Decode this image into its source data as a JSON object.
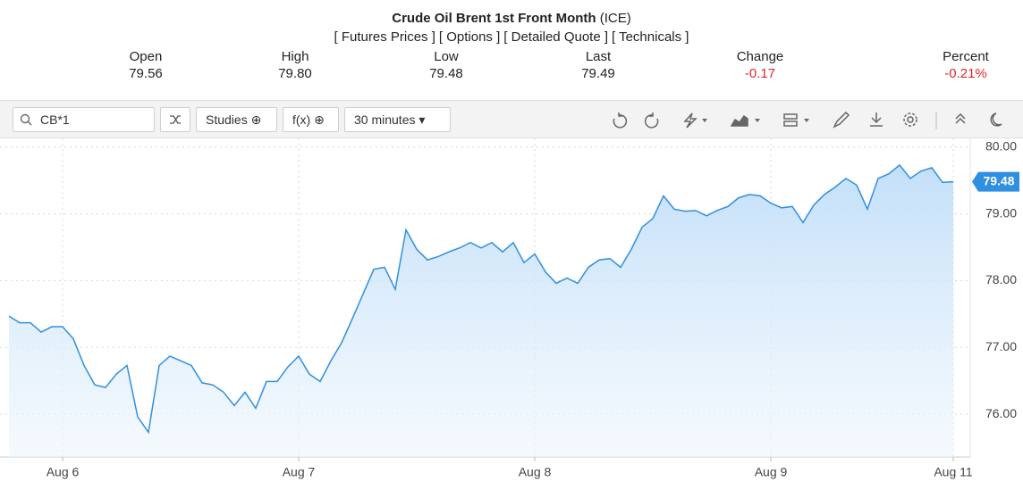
{
  "header": {
    "title": "Crude Oil Brent 1st Front Month",
    "exchange": "(ICE)",
    "links": [
      "[ Futures Prices ]",
      "[ Options ]",
      "[ Detailed Quote ]",
      "[ Technicals ]"
    ],
    "stats": [
      {
        "label": "Open",
        "value": "79.56"
      },
      {
        "label": "High",
        "value": "79.80"
      },
      {
        "label": "Low",
        "value": "79.48"
      },
      {
        "label": "Last",
        "value": "79.49"
      },
      {
        "label": "Change",
        "value": "-0.17"
      },
      {
        "label": "Percent",
        "value": "-0.21%"
      }
    ]
  },
  "toolbar": {
    "symbol": "CB*1",
    "studies": "Studies",
    "fx": "f(x)",
    "interval": "30 minutes"
  },
  "chart_data": {
    "type": "line",
    "categories": [
      null,
      null,
      null,
      null,
      null,
      "Aug 6",
      null,
      null,
      null,
      null,
      null,
      null,
      null,
      null,
      null,
      null,
      null,
      null,
      null,
      null,
      null,
      null,
      null,
      null,
      null,
      null,
      null,
      "Aug 7",
      null,
      null,
      null,
      null,
      null,
      null,
      null,
      null,
      null,
      null,
      null,
      null,
      null,
      null,
      null,
      null,
      null,
      null,
      null,
      null,
      null,
      "Aug 8",
      null,
      null,
      null,
      null,
      null,
      null,
      null,
      null,
      null,
      null,
      null,
      null,
      null,
      null,
      null,
      null,
      null,
      null,
      null,
      null,
      null,
      "Aug 9",
      null,
      null,
      null,
      null,
      null,
      null,
      null,
      null,
      null,
      null,
      null,
      null,
      null,
      null,
      null,
      null,
      "Aug 11"
    ],
    "series": [
      {
        "name": "CB*1",
        "color": "#2f8fe0",
        "values": [
          77.47,
          77.37,
          77.37,
          77.23,
          77.31,
          77.31,
          77.13,
          76.73,
          76.44,
          76.4,
          76.6,
          76.73,
          75.96,
          75.73,
          76.73,
          76.87,
          76.8,
          76.73,
          76.47,
          76.44,
          76.33,
          76.13,
          76.33,
          76.09,
          76.49,
          76.49,
          76.71,
          76.87,
          76.6,
          76.49,
          76.8,
          77.07,
          77.43,
          77.8,
          78.17,
          78.2,
          77.87,
          78.76,
          78.47,
          78.31,
          78.36,
          78.43,
          78.49,
          78.57,
          78.49,
          78.57,
          78.43,
          78.57,
          78.27,
          78.4,
          78.13,
          77.96,
          78.04,
          77.96,
          78.2,
          78.31,
          78.33,
          78.2,
          78.47,
          78.8,
          78.93,
          79.27,
          79.07,
          79.04,
          79.05,
          78.97,
          79.05,
          79.11,
          79.24,
          79.29,
          79.27,
          79.16,
          79.09,
          79.11,
          78.87,
          79.13,
          79.29,
          79.4,
          79.53,
          79.43,
          79.07,
          79.53,
          79.6,
          79.73,
          79.53,
          79.64,
          79.69,
          79.47,
          79.48
        ]
      }
    ],
    "price_tag": "79.48",
    "ylim": [
      75.36,
      80.13
    ],
    "yticks": [
      {
        "value": 76,
        "label": "76.00"
      },
      {
        "value": 77,
        "label": "77.00"
      },
      {
        "value": 78,
        "label": "78.00"
      },
      {
        "value": 79,
        "label": "79.00"
      },
      {
        "value": 80,
        "label": "80.00"
      }
    ],
    "grid": true
  }
}
